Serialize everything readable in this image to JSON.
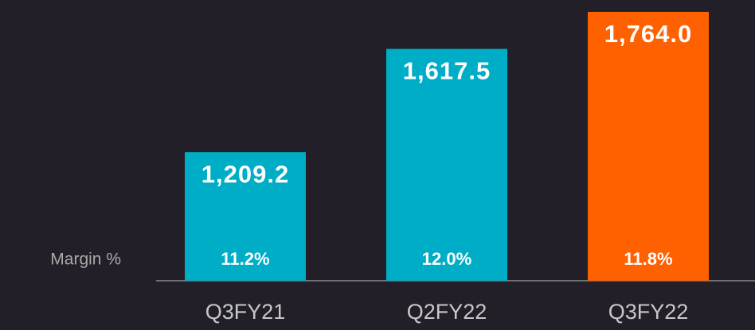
{
  "chart_data": {
    "type": "bar",
    "categories": [
      "Q3FY21",
      "Q2FY22",
      "Q3FY22"
    ],
    "values": [
      1209.2,
      1617.5,
      1764.0
    ],
    "value_labels": [
      "1,209.2",
      "1,617.5",
      "1,764.0"
    ],
    "colors": [
      "#00adc6",
      "#00adc6",
      "#ff6000"
    ],
    "ylim": [
      700,
      1800
    ],
    "margin": {
      "label": "Margin %",
      "values": [
        11.2,
        12.0,
        11.8
      ],
      "value_labels": [
        "11.2%",
        "12.0%",
        "11.8%"
      ]
    }
  }
}
